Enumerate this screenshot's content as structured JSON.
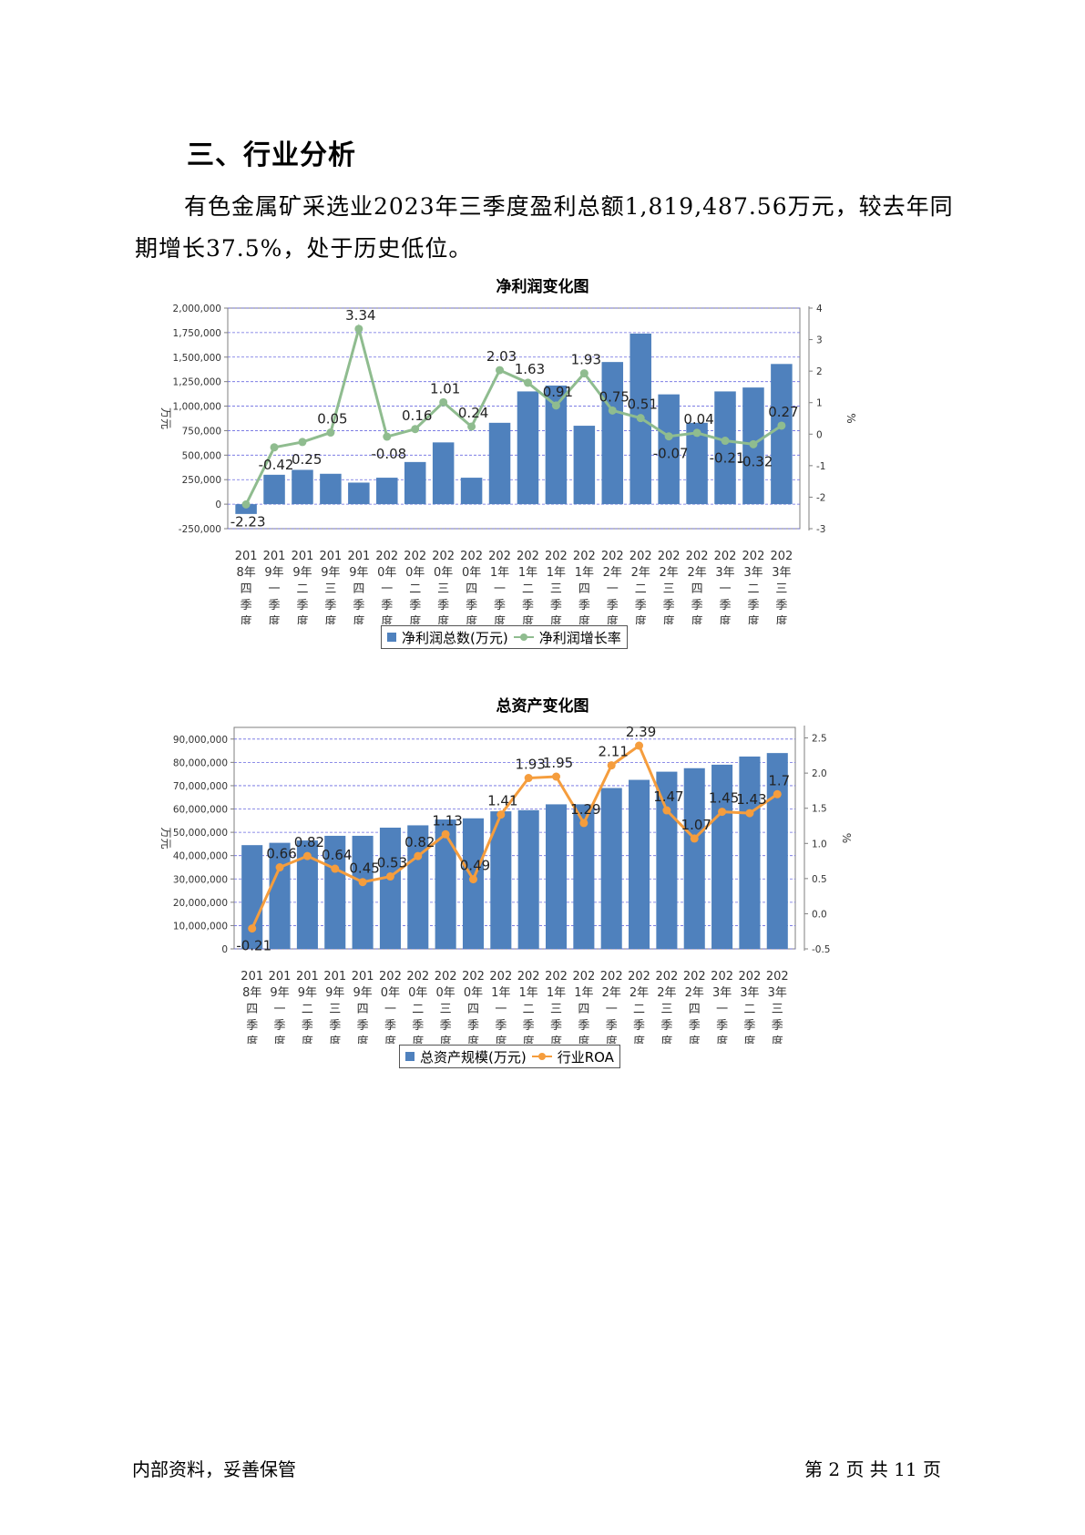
{
  "section_title": "三、行业分析",
  "paragraph": "有色金属矿采选业2023年三季度盈利总额1,819,487.56万元，较去年同期增长37.5%，处于历史低位。",
  "footer": {
    "left": "内部资料，妥善保管",
    "right": "第 2 页   共 11 页"
  },
  "colors": {
    "bar": "#4f81bd",
    "line1": "#8fbc8f",
    "line2": "#f59d3d"
  },
  "chart_data": [
    {
      "type": "bar",
      "title": "净利润变化图",
      "ylabel": "万元",
      "y2label": "%",
      "categories": [
        "2018年四季度",
        "2019年一季度",
        "2019年二季度",
        "2019年三季度",
        "2019年四季度",
        "2020年一季度",
        "2020年二季度",
        "2020年三季度",
        "2020年四季度",
        "2021年一季度",
        "2021年二季度",
        "2021年三季度",
        "2021年四季度",
        "2022年一季度",
        "2022年二季度",
        "2022年三季度",
        "2022年四季度",
        "2023年一季度",
        "2023年二季度",
        "2023年三季度"
      ],
      "category_labels": [
        [
          "201",
          "8年",
          "四",
          "季",
          "度"
        ],
        [
          "201",
          "9年",
          "一",
          "季",
          "度"
        ],
        [
          "201",
          "9年",
          "二",
          "季",
          "度"
        ],
        [
          "201",
          "9年",
          "三",
          "季",
          "度"
        ],
        [
          "201",
          "9年",
          "四",
          "季",
          "度"
        ],
        [
          "202",
          "0年",
          "一",
          "季",
          "度"
        ],
        [
          "202",
          "0年",
          "二",
          "季",
          "度"
        ],
        [
          "202",
          "0年",
          "三",
          "季",
          "度"
        ],
        [
          "202",
          "0年",
          "四",
          "季",
          "度"
        ],
        [
          "202",
          "1年",
          "一",
          "季",
          "度"
        ],
        [
          "202",
          "1年",
          "二",
          "季",
          "度"
        ],
        [
          "202",
          "1年",
          "三",
          "季",
          "度"
        ],
        [
          "202",
          "1年",
          "四",
          "季",
          "度"
        ],
        [
          "202",
          "2年",
          "一",
          "季",
          "度"
        ],
        [
          "202",
          "2年",
          "二",
          "季",
          "度"
        ],
        [
          "202",
          "2年",
          "三",
          "季",
          "度"
        ],
        [
          "202",
          "2年",
          "四",
          "季",
          "度"
        ],
        [
          "202",
          "3年",
          "一",
          "季",
          "度"
        ],
        [
          "202",
          "3年",
          "二",
          "季",
          "度"
        ],
        [
          "202",
          "3年",
          "三",
          "季",
          "度"
        ]
      ],
      "series": [
        {
          "name": "净利润总数(万元)",
          "axis": "left",
          "kind": "bar",
          "values": [
            -100000,
            300000,
            350000,
            310000,
            220000,
            270000,
            430000,
            630000,
            270000,
            830000,
            1150000,
            1210000,
            800000,
            1450000,
            1740000,
            1120000,
            830000,
            1150000,
            1190000,
            1430000
          ]
        },
        {
          "name": "净利润增长率",
          "axis": "right",
          "kind": "line",
          "values": [
            -2.23,
            -0.42,
            -0.25,
            0.05,
            3.34,
            -0.08,
            0.16,
            1.01,
            0.24,
            2.03,
            1.63,
            0.91,
            1.93,
            0.75,
            0.51,
            -0.07,
            0.04,
            -0.21,
            -0.32,
            0.27
          ],
          "labels": [
            "-2.23",
            "-0.42",
            "-0.25",
            "0.05",
            "3.34",
            "-0.08",
            "0.16",
            "1.01",
            "0.24",
            "2.03",
            "1.63",
            "0.91",
            "1.93",
            "0.75",
            "0.51",
            "-0.07",
            "0.04",
            "-0.21",
            "-0.32",
            "0.27"
          ]
        }
      ],
      "ylim": [
        -250000,
        2000000
      ],
      "yticks": [
        -250000,
        0,
        250000,
        500000,
        750000,
        1000000,
        1250000,
        1500000,
        1750000,
        2000000
      ],
      "ytick_labels": [
        "-250,000",
        "0",
        "250,000",
        "500,000",
        "750,000",
        "1,000,000",
        "1,250,000",
        "1,500,000",
        "1,750,000",
        "2,000,000"
      ],
      "y2lim": [
        -3,
        4
      ],
      "y2ticks": [
        -3,
        -2,
        -1,
        0,
        1,
        2,
        3,
        4
      ],
      "y2tick_labels": [
        "-3",
        "-2",
        "-1",
        "0",
        "1",
        "2",
        "3",
        "4"
      ],
      "legend": "bottom",
      "grid": true
    },
    {
      "type": "bar",
      "title": "总资产变化图",
      "ylabel": "万元",
      "y2label": "%",
      "categories": [
        "2018年四季度",
        "2019年一季度",
        "2019年二季度",
        "2019年三季度",
        "2019年四季度",
        "2020年一季度",
        "2020年二季度",
        "2020年三季度",
        "2020年四季度",
        "2021年一季度",
        "2021年二季度",
        "2021年三季度",
        "2021年四季度",
        "2022年一季度",
        "2022年二季度",
        "2022年三季度",
        "2022年四季度",
        "2023年一季度",
        "2023年二季度",
        "2023年三季度"
      ],
      "category_labels": [
        [
          "201",
          "8年",
          "四",
          "季",
          "度"
        ],
        [
          "201",
          "9年",
          "一",
          "季",
          "度"
        ],
        [
          "201",
          "9年",
          "二",
          "季",
          "度"
        ],
        [
          "201",
          "9年",
          "三",
          "季",
          "度"
        ],
        [
          "201",
          "9年",
          "四",
          "季",
          "度"
        ],
        [
          "202",
          "0年",
          "一",
          "季",
          "度"
        ],
        [
          "202",
          "0年",
          "二",
          "季",
          "度"
        ],
        [
          "202",
          "0年",
          "三",
          "季",
          "度"
        ],
        [
          "202",
          "0年",
          "四",
          "季",
          "度"
        ],
        [
          "202",
          "1年",
          "一",
          "季",
          "度"
        ],
        [
          "202",
          "1年",
          "二",
          "季",
          "度"
        ],
        [
          "202",
          "1年",
          "三",
          "季",
          "度"
        ],
        [
          "202",
          "1年",
          "四",
          "季",
          "度"
        ],
        [
          "202",
          "2年",
          "一",
          "季",
          "度"
        ],
        [
          "202",
          "2年",
          "二",
          "季",
          "度"
        ],
        [
          "202",
          "2年",
          "三",
          "季",
          "度"
        ],
        [
          "202",
          "2年",
          "四",
          "季",
          "度"
        ],
        [
          "202",
          "3年",
          "一",
          "季",
          "度"
        ],
        [
          "202",
          "3年",
          "二",
          "季",
          "度"
        ],
        [
          "202",
          "3年",
          "三",
          "季",
          "度"
        ]
      ],
      "series": [
        {
          "name": "总资产规模(万元)",
          "axis": "left",
          "kind": "bar",
          "values": [
            44500000,
            45500000,
            46500000,
            48500000,
            48500000,
            52000000,
            53000000,
            55500000,
            56000000,
            59000000,
            59500000,
            62000000,
            62000000,
            69000000,
            72500000,
            76000000,
            77500000,
            79000000,
            82500000,
            84000000
          ]
        },
        {
          "name": "行业ROA",
          "axis": "right",
          "kind": "line",
          "values": [
            -0.21,
            0.66,
            0.82,
            0.64,
            0.45,
            0.53,
            0.82,
            1.13,
            0.49,
            1.41,
            1.93,
            1.95,
            1.29,
            2.11,
            2.39,
            1.47,
            1.07,
            1.45,
            1.43,
            1.7
          ],
          "labels": [
            "-0.21",
            "0.66",
            "0.82",
            "0.64",
            "0.45",
            "0.53",
            "0.82",
            "1.13",
            "0.49",
            "1.41",
            "1.93",
            "1.95",
            "1.29",
            "2.11",
            "2.39",
            "1.47",
            "1.07",
            "1.45",
            "1.43",
            "1.7"
          ]
        }
      ],
      "ylim": [
        0,
        95000000
      ],
      "yticks": [
        0,
        10000000,
        20000000,
        30000000,
        40000000,
        50000000,
        60000000,
        70000000,
        80000000,
        90000000
      ],
      "ytick_labels": [
        "0",
        "10,000,000",
        "20,000,000",
        "30,000,000",
        "40,000,000",
        "50,000,000",
        "60,000,000",
        "70,000,000",
        "80,000,000",
        "90,000,000"
      ],
      "y2lim": [
        -0.5,
        2.65
      ],
      "y2ticks": [
        -0.5,
        0.0,
        0.5,
        1.0,
        1.5,
        2.0,
        2.5
      ],
      "y2tick_labels": [
        "-0.5",
        "0.0",
        "0.5",
        "1.0",
        "1.5",
        "2.0",
        "2.5"
      ],
      "legend": "bottom",
      "grid": true
    }
  ]
}
